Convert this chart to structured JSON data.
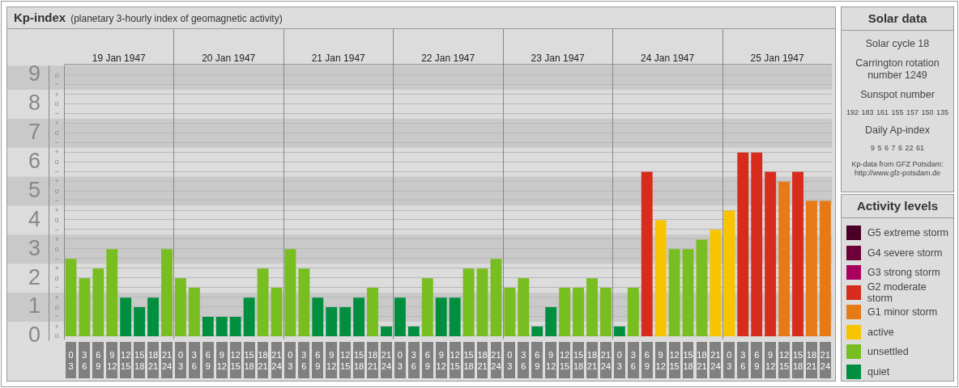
{
  "chart_data": [
    {
      "type": "bar",
      "title": "Kp-index",
      "subtitle": "(planetary 3-hourly index of geomagnetic activity)",
      "legend_title": "Activity levels",
      "legend": "right",
      "stacked": true,
      "categories": [
        "0\n3",
        "3\n6",
        "6\n9",
        "9\n12",
        "12\n15",
        "15\n18",
        "18\n21",
        "21\n24",
        "0\n3",
        "3\n6",
        "6\n9",
        "9\n12",
        "12\n15",
        "15\n18",
        "18\n21",
        "21\n24",
        "0\n3",
        "3\n6",
        "6\n9",
        "9\n12",
        "12\n15",
        "15\n18",
        "18\n21",
        "21\n24",
        "0\n3",
        "3\n6",
        "6\n9",
        "9\n12",
        "12\n15",
        "15\n18",
        "18\n21",
        "21\n24",
        "0\n3",
        "3\n6",
        "6\n9",
        "9\n12",
        "12\n15",
        "15\n18",
        "18\n21",
        "21\n24",
        "0\n3",
        "3\n6",
        "6\n9",
        "9\n12",
        "12\n15",
        "15\n18",
        "18\n21",
        "21\n24",
        "0\n3",
        "3\n6",
        "6\n9",
        "9\n12",
        "12\n15",
        "15\n18",
        "18\n21",
        "21\n24"
      ],
      "annotations": [
        "19 Jan 1947",
        "20 Jan 1947",
        "21 Jan 1947",
        "22 Jan 1947",
        "23 Jan 1947",
        "24 Jan 1947",
        "25 Jan 1947"
      ],
      "ref_lines": [
        {
          "axis": "y",
          "value": 0,
          "label": "o",
          "color": "#b8b8b8"
        },
        {
          "axis": "y",
          "value": 0.33,
          "label": "+",
          "color": "#b8b8b8"
        },
        {
          "axis": "y",
          "value": 0.67,
          "label": "−",
          "color": "#b8b8b8"
        },
        {
          "axis": "y",
          "value": 1,
          "label": "o",
          "color": "#b8b8b8"
        },
        {
          "axis": "y",
          "value": 1.33,
          "label": "+",
          "color": "#b8b8b8"
        },
        {
          "axis": "y",
          "value": 1.67,
          "label": "−",
          "color": "#b8b8b8"
        },
        {
          "axis": "y",
          "value": 2,
          "label": "o",
          "color": "#b8b8b8"
        },
        {
          "axis": "y",
          "value": 2.33,
          "label": "+",
          "color": "#b8b8b8"
        },
        {
          "axis": "y",
          "value": 2.67,
          "label": "−",
          "color": "#b8b8b8"
        },
        {
          "axis": "y",
          "value": 3,
          "label": "o",
          "color": "#b8b8b8"
        },
        {
          "axis": "y",
          "value": 3.33,
          "label": "+",
          "color": "#b8b8b8"
        },
        {
          "axis": "y",
          "value": 3.67,
          "label": "−",
          "color": "#b8b8b8"
        },
        {
          "axis": "y",
          "value": 4,
          "label": "o",
          "color": "#b8b8b8"
        },
        {
          "axis": "y",
          "value": 4.33,
          "label": "+",
          "color": "#b8b8b8"
        },
        {
          "axis": "y",
          "value": 4.67,
          "label": "−",
          "color": "#b8b8b8"
        },
        {
          "axis": "y",
          "value": 5,
          "label": "o",
          "color": "#b8b8b8"
        },
        {
          "axis": "y",
          "value": 5.33,
          "label": "+",
          "color": "#b8b8b8"
        },
        {
          "axis": "y",
          "value": 5.67,
          "label": "−",
          "color": "#b8b8b8"
        },
        {
          "axis": "y",
          "value": 6,
          "label": "o",
          "color": "#b8b8b8"
        },
        {
          "axis": "y",
          "value": 6.33,
          "label": "+",
          "color": "#b8b8b8"
        },
        {
          "axis": "y",
          "value": 6.67,
          "label": "−",
          "color": "#b8b8b8"
        },
        {
          "axis": "y",
          "value": 7,
          "label": "o",
          "color": "#b8b8b8"
        },
        {
          "axis": "y",
          "value": 7.33,
          "label": "+",
          "color": "#b8b8b8"
        },
        {
          "axis": "y",
          "value": 7.67,
          "label": "−",
          "color": "#b8b8b8"
        },
        {
          "axis": "y",
          "value": 8,
          "label": "o",
          "color": "#b8b8b8"
        },
        {
          "axis": "y",
          "value": 8.33,
          "label": "+",
          "color": "#b8b8b8"
        },
        {
          "axis": "y",
          "value": 8.67,
          "label": "−",
          "color": "#b8b8b8"
        },
        {
          "axis": "y",
          "value": 9,
          "label": "o",
          "color": "#b8b8b8"
        }
      ],
      "bands": [
        {
          "axis": "y",
          "from": 0.5,
          "to": 1.5,
          "color": "#c9c9c9"
        },
        {
          "axis": "y",
          "from": 2.5,
          "to": 3.5,
          "color": "#c9c9c9"
        },
        {
          "axis": "y",
          "from": 4.5,
          "to": 5.5,
          "color": "#c9c9c9"
        },
        {
          "axis": "y",
          "from": 6.5,
          "to": 7.5,
          "color": "#c9c9c9"
        },
        {
          "axis": "y",
          "from": 8.5,
          "to": 9.33,
          "color": "#c9c9c9"
        }
      ],
      "ylim": [
        -0.1,
        9.33
      ],
      "yticks": [
        0,
        1,
        2,
        3,
        4,
        5,
        6,
        7,
        8,
        9
      ],
      "series": [
        {
          "name": "G5 extreme storm",
          "color": "#4a0026",
          "values": [
            null,
            null,
            null,
            null,
            null,
            null,
            null,
            null,
            null,
            null,
            null,
            null,
            null,
            null,
            null,
            null,
            null,
            null,
            null,
            null,
            null,
            null,
            null,
            null,
            null,
            null,
            null,
            null,
            null,
            null,
            null,
            null,
            null,
            null,
            null,
            null,
            null,
            null,
            null,
            null,
            null,
            null,
            null,
            null,
            null,
            null,
            null,
            null,
            null,
            null,
            null,
            null,
            null,
            null,
            null,
            null
          ]
        },
        {
          "name": "G4 severe storm",
          "color": "#6d0038",
          "values": [
            null,
            null,
            null,
            null,
            null,
            null,
            null,
            null,
            null,
            null,
            null,
            null,
            null,
            null,
            null,
            null,
            null,
            null,
            null,
            null,
            null,
            null,
            null,
            null,
            null,
            null,
            null,
            null,
            null,
            null,
            null,
            null,
            null,
            null,
            null,
            null,
            null,
            null,
            null,
            null,
            null,
            null,
            null,
            null,
            null,
            null,
            null,
            null,
            null,
            null,
            null,
            null,
            null,
            null,
            null,
            null
          ]
        },
        {
          "name": "G3 strong storm",
          "color": "#a8005c",
          "values": [
            null,
            null,
            null,
            null,
            null,
            null,
            null,
            null,
            null,
            null,
            null,
            null,
            null,
            null,
            null,
            null,
            null,
            null,
            null,
            null,
            null,
            null,
            null,
            null,
            null,
            null,
            null,
            null,
            null,
            null,
            null,
            null,
            null,
            null,
            null,
            null,
            null,
            null,
            null,
            null,
            null,
            null,
            null,
            null,
            null,
            null,
            null,
            null,
            null,
            null,
            null,
            null,
            null,
            null,
            null,
            null
          ]
        },
        {
          "name": "G2 moderate storm",
          "color": "#d72c1c",
          "values": [
            null,
            null,
            null,
            null,
            null,
            null,
            null,
            null,
            null,
            null,
            null,
            null,
            null,
            null,
            null,
            null,
            null,
            null,
            null,
            null,
            null,
            null,
            null,
            null,
            null,
            null,
            null,
            null,
            null,
            null,
            null,
            null,
            null,
            null,
            null,
            null,
            null,
            null,
            null,
            null,
            null,
            null,
            5.67,
            null,
            null,
            null,
            null,
            null,
            null,
            6.33,
            6.33,
            5.67,
            null,
            5.67,
            null,
            null
          ]
        },
        {
          "name": "G1 minor storm",
          "color": "#e57a17",
          "values": [
            null,
            null,
            null,
            null,
            null,
            null,
            null,
            null,
            null,
            null,
            null,
            null,
            null,
            null,
            null,
            null,
            null,
            null,
            null,
            null,
            null,
            null,
            null,
            null,
            null,
            null,
            null,
            null,
            null,
            null,
            null,
            null,
            null,
            null,
            null,
            null,
            null,
            null,
            null,
            null,
            null,
            null,
            null,
            null,
            null,
            null,
            null,
            null,
            null,
            null,
            null,
            null,
            5.33,
            null,
            4.67,
            4.67
          ]
        },
        {
          "name": "active",
          "color": "#f8c400",
          "values": [
            null,
            null,
            null,
            null,
            null,
            null,
            null,
            null,
            null,
            null,
            null,
            null,
            null,
            null,
            null,
            null,
            null,
            null,
            null,
            null,
            null,
            null,
            null,
            null,
            null,
            null,
            null,
            null,
            null,
            null,
            null,
            null,
            null,
            null,
            null,
            null,
            null,
            null,
            null,
            null,
            null,
            null,
            null,
            4,
            null,
            null,
            null,
            3.67,
            4.33,
            null,
            null,
            null,
            null,
            null,
            null,
            null
          ]
        },
        {
          "name": "unsettled",
          "color": "#78be20",
          "values": [
            2.67,
            2,
            2.33,
            3,
            null,
            null,
            null,
            3,
            2,
            1.67,
            null,
            null,
            null,
            null,
            2.33,
            1.67,
            3,
            2.33,
            null,
            null,
            null,
            null,
            1.67,
            null,
            null,
            null,
            2,
            null,
            null,
            2.33,
            2.33,
            2.67,
            1.67,
            2,
            null,
            null,
            1.67,
            1.67,
            2,
            1.67,
            null,
            1.67,
            null,
            null,
            3,
            3,
            3.33,
            null,
            null,
            null,
            null,
            null,
            null,
            null,
            null,
            null
          ]
        },
        {
          "name": "quiet",
          "color": "#008f3f",
          "values": [
            null,
            null,
            null,
            null,
            1.33,
            1,
            1.33,
            null,
            null,
            null,
            0.67,
            0.67,
            0.67,
            1.33,
            null,
            null,
            null,
            null,
            1.33,
            1,
            1,
            1.33,
            null,
            0.33,
            1.33,
            0.33,
            null,
            1.33,
            1.33,
            null,
            null,
            null,
            null,
            null,
            0.33,
            1,
            null,
            null,
            null,
            null,
            0.33,
            null,
            null,
            null,
            null,
            null,
            null,
            null,
            null,
            null,
            null,
            null,
            null,
            null,
            null,
            null
          ]
        }
      ]
    },
    {
      "type": "other",
      "title": "Solar data",
      "annotations": [
        "Solar cycle 18",
        "Carrington rotation number 1249",
        "Sunspot number",
        "192 183 161 155 157 150 135",
        "Daily Ap-index",
        "9 5 6 7 6 22 61",
        "Kp-data from GFZ Potsdam: http://www.gfz-potsdam.de"
      ]
    }
  ]
}
